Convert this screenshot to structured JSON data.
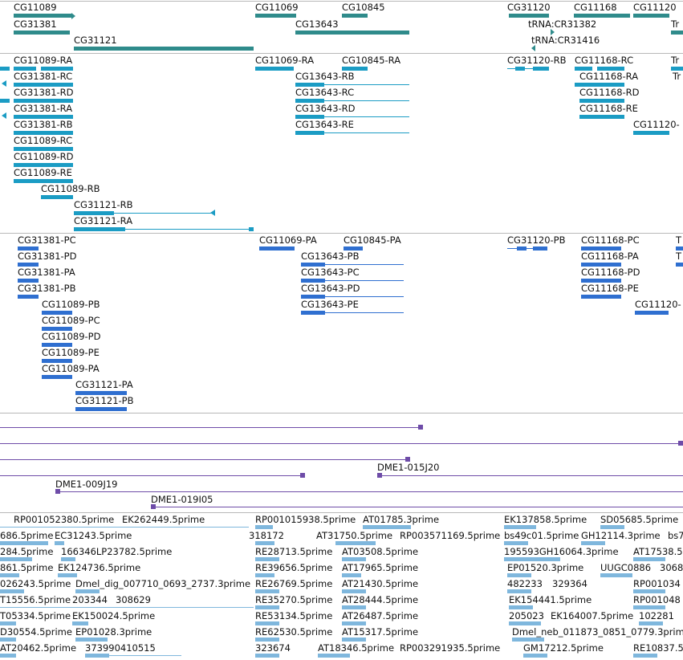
{
  "colors": {
    "gene": "#2f8b8b",
    "transcript": "#1b9cc4",
    "polypeptide": "#2f6fd0",
    "clone": "#6e4ca8",
    "est": "#7fb7dd",
    "divider": "#b8b8b8"
  },
  "tracks": {
    "genes": [
      {
        "label": "CG11089",
        "color": "gene"
      },
      {
        "label": "CG11069",
        "color": "gene"
      },
      {
        "label": "CG10845",
        "color": "gene"
      },
      {
        "label": "CG31120",
        "color": "gene"
      },
      {
        "label": "CG11168",
        "color": "gene"
      },
      {
        "label": "CG11120",
        "color": "gene"
      },
      {
        "label": "CG31381",
        "color": "gene"
      },
      {
        "label": "CG13643",
        "color": "gene"
      },
      {
        "label": "tRNA:CR31382",
        "color": "gene"
      },
      {
        "label": "CG31121",
        "color": "gene"
      },
      {
        "label": "tRNA:CR31416",
        "color": "gene"
      },
      {
        "label": "Tr",
        "color": "gene"
      }
    ],
    "transcripts": [
      {
        "label": "CG11089-RA"
      },
      {
        "label": "CG11069-RA"
      },
      {
        "label": "CG10845-RA"
      },
      {
        "label": "CG31120-RB"
      },
      {
        "label": "CG11168-RC"
      },
      {
        "label": "Tr"
      },
      {
        "label": "CG31381-RC"
      },
      {
        "label": "CG13643-RB"
      },
      {
        "label": "CG11168-RA"
      },
      {
        "label": "Tr"
      },
      {
        "label": "CG31381-RD"
      },
      {
        "label": "CG13643-RC"
      },
      {
        "label": "CG11168-RD"
      },
      {
        "label": "CG31381-RA"
      },
      {
        "label": "CG13643-RD"
      },
      {
        "label": "CG11168-RE"
      },
      {
        "label": "CG31381-RB"
      },
      {
        "label": "CG13643-RE"
      },
      {
        "label": "CG11120-"
      },
      {
        "label": "CG11089-RC"
      },
      {
        "label": "CG11089-RD"
      },
      {
        "label": "CG11089-RE"
      },
      {
        "label": "CG11089-RB"
      },
      {
        "label": "CG31121-RB"
      },
      {
        "label": "CG31121-RA"
      }
    ],
    "polypeptides": [
      {
        "label": "CG31381-PC"
      },
      {
        "label": "CG11069-PA"
      },
      {
        "label": "CG10845-PA"
      },
      {
        "label": "CG31120-PB"
      },
      {
        "label": "CG11168-PC"
      },
      {
        "label": "T"
      },
      {
        "label": "CG31381-PD"
      },
      {
        "label": "CG13643-PB"
      },
      {
        "label": "CG11168-PA"
      },
      {
        "label": "T"
      },
      {
        "label": "CG31381-PA"
      },
      {
        "label": "CG13643-PC"
      },
      {
        "label": "CG11168-PD"
      },
      {
        "label": "CG31381-PB"
      },
      {
        "label": "CG13643-PD"
      },
      {
        "label": "CG11168-PE"
      },
      {
        "label": "CG11089-PB"
      },
      {
        "label": "CG13643-PE"
      },
      {
        "label": "CG11120-"
      },
      {
        "label": "CG11089-PC"
      },
      {
        "label": "CG11089-PD"
      },
      {
        "label": "CG11089-PE"
      },
      {
        "label": "CG11089-PA"
      },
      {
        "label": "CG31121-PA"
      },
      {
        "label": "CG31121-PB"
      }
    ],
    "clones": [
      {
        "label": "DME1-015J20"
      },
      {
        "label": "DME1-009J19"
      },
      {
        "label": "DME1-019I05"
      }
    ],
    "ests": [
      {
        "label": "RP001052380.5prime"
      },
      {
        "label": "EK262449.5prime"
      },
      {
        "label": "RP001015938.5prime"
      },
      {
        "label": "AT01785.3prime"
      },
      {
        "label": "EK137858.5prime"
      },
      {
        "label": "SD05685.5prime"
      },
      {
        "label": "686.5prime"
      },
      {
        "label": "EC31243.5prime"
      },
      {
        "label": "318172"
      },
      {
        "label": "AT31750.5prime"
      },
      {
        "label": "RP003571169.5prime"
      },
      {
        "label": "bs49c01.5prime"
      },
      {
        "label": "GH12114.3prime"
      },
      {
        "label": "bs7"
      },
      {
        "label": "284.5prime"
      },
      {
        "label": "166346LP23782.5prime"
      },
      {
        "label": "RE28713.5prime"
      },
      {
        "label": "AT03508.5prime"
      },
      {
        "label": "195593GH16064.3prime"
      },
      {
        "label": "AT17538.5"
      },
      {
        "label": "861.5prime"
      },
      {
        "label": "EK124736.5prime"
      },
      {
        "label": "RE39656.5prime"
      },
      {
        "label": "AT17965.5prime"
      },
      {
        "label": "EP01520.3prime"
      },
      {
        "label": "UUGC0886"
      },
      {
        "label": "3068"
      },
      {
        "label": "026243.5prime"
      },
      {
        "label": "Dmel_dig_007710_0693_2737.3prime"
      },
      {
        "label": "RE26769.5prime"
      },
      {
        "label": "AT21430.5prime"
      },
      {
        "label": "482233"
      },
      {
        "label": "329364"
      },
      {
        "label": "RP001034"
      },
      {
        "label": "T15556.5prime"
      },
      {
        "label": "203344"
      },
      {
        "label": "308629"
      },
      {
        "label": "RE35270.5prime"
      },
      {
        "label": "AT28444.5prime"
      },
      {
        "label": "EK154441.5prime"
      },
      {
        "label": "RP001048"
      },
      {
        "label": "T05334.5prime"
      },
      {
        "label": "EK150024.5prime"
      },
      {
        "label": "RE53134.5prime"
      },
      {
        "label": "AT26487.5prime"
      },
      {
        "label": "205023"
      },
      {
        "label": "EK164007.5prime"
      },
      {
        "label": "102281"
      },
      {
        "label": "D30554.5prime"
      },
      {
        "label": "EP01028.3prime"
      },
      {
        "label": "RE62530.5prime"
      },
      {
        "label": "AT15317.5prime"
      },
      {
        "label": "Dmel_neb_011873_0851_0779.3prime"
      },
      {
        "label": "AT20462.5prime"
      },
      {
        "label": "373990410515"
      },
      {
        "label": "323674"
      },
      {
        "label": "AT18346.5prime"
      },
      {
        "label": "RP003291935.5prime"
      },
      {
        "label": "GM17212.5prime"
      },
      {
        "label": "RE10837.5"
      }
    ]
  }
}
